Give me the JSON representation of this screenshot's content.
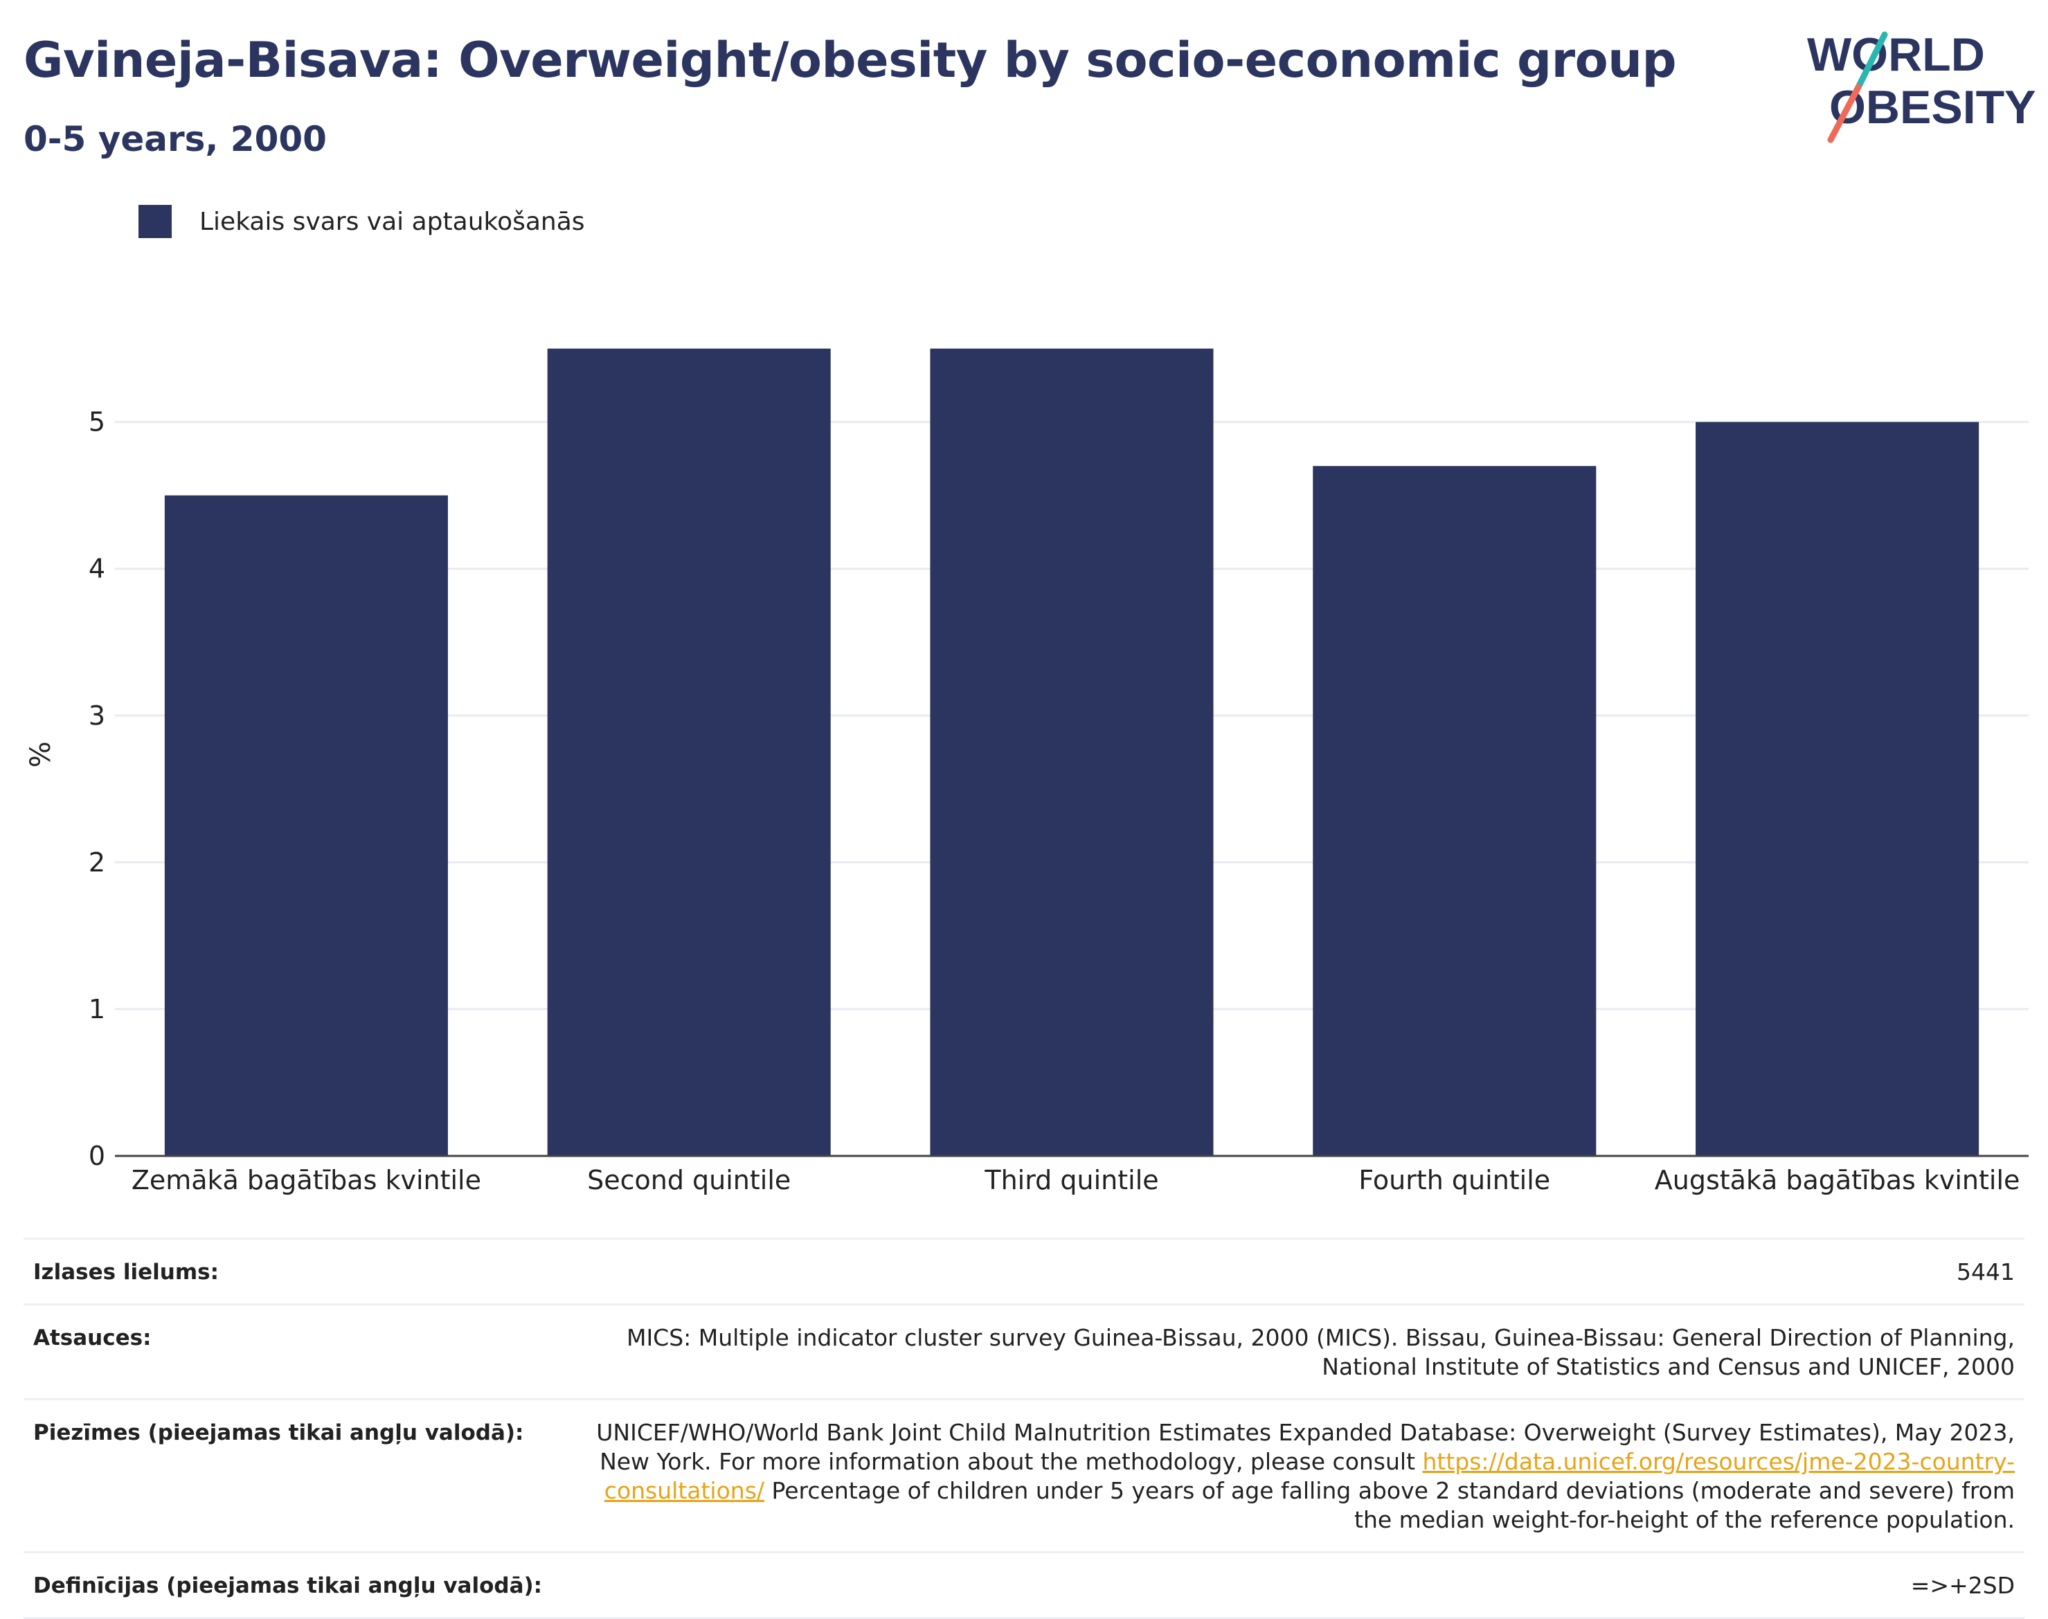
{
  "header": {
    "title": "Gvineja-Bisava: Overweight/obesity by socio-economic group",
    "subtitle": "0-5 years, 2000"
  },
  "logo": {
    "line1": "WORLD",
    "line2": "OBESITY"
  },
  "colors": {
    "bar": "#2b3560",
    "title": "#2b3560",
    "accent_teal": "#2ab7b0",
    "accent_coral": "#ee6b5a",
    "link": "#e8a316"
  },
  "chart_data": {
    "type": "bar",
    "categories": [
      "Zemākā bagātības kvintile",
      "Second quintile",
      "Third quintile",
      "Fourth quintile",
      "Augstākā bagātības kvintile"
    ],
    "series": [
      {
        "name": "Liekais svars vai aptaukošanās",
        "values": [
          4.5,
          5.5,
          5.5,
          4.7,
          5.0
        ]
      }
    ],
    "ylabel": "%",
    "yticks": [
      0,
      1,
      2,
      3,
      4,
      5
    ],
    "ylim": [
      0,
      5.8
    ],
    "grid": true,
    "legend_position": "top-left"
  },
  "footer": {
    "sample": {
      "label": "Izlases lielums:",
      "value": "5441"
    },
    "sources": {
      "label": "Atsauces:",
      "value": "MICS: Multiple indicator cluster survey Guinea-Bissau, 2000 (MICS). Bissau, Guinea-Bissau: General Direction of Planning, National Institute of Statistics and Census and UNICEF, 2000"
    },
    "notes": {
      "label": "Piezīmes (pieejamas tikai angļu valodā):",
      "text_before": "UNICEF/WHO/World Bank Joint Child Malnutrition Estimates Expanded Database: Overweight (Survey Estimates), May 2023, New York. For more information about the methodology, please consult ",
      "link": "https://data.unicef.org/resources/jme-2023-country-consultations/",
      "text_after": " Percentage of children under 5 years of age falling above 2 standard deviations (moderate and severe) from the median weight-for-height of the reference population."
    },
    "definitions": {
      "label": "Definīcijas (pieejamas tikai angļu valodā):",
      "value": "=>+2SD"
    }
  }
}
